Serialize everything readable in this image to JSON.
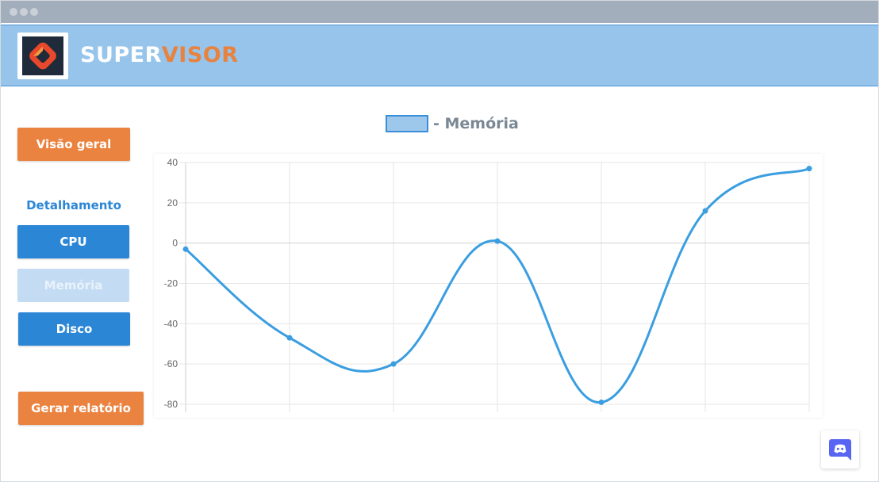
{
  "window": {
    "control_icons": [
      "window-dot-icon",
      "window-dot-icon",
      "window-dot-icon"
    ]
  },
  "header": {
    "logo_icon": "supervisor-logo-icon",
    "brand_part1": "SUPER",
    "brand_part2": "VISOR",
    "brand_color_primary": "#ffffff",
    "brand_color_accent": "#e8823e",
    "background_color": "#96c4ea"
  },
  "sidebar": {
    "overview_label": "Visão geral",
    "section_label": "Detalhamento",
    "items": [
      {
        "label": "CPU",
        "state": "active"
      },
      {
        "label": "Memória",
        "state": "disabled"
      },
      {
        "label": "Disco",
        "state": "active"
      }
    ],
    "report_label": "Gerar relatório"
  },
  "colors": {
    "orange": "#ea833f",
    "blue": "#2b87d6",
    "light_blue": "#c3dcf3",
    "line": "#3a9ee0"
  },
  "chart_data": {
    "type": "line",
    "legend": [
      {
        "name": "- Memória",
        "swatch_color": "#9ec7ec",
        "border_color": "#3a8fd8"
      }
    ],
    "legend_position": "top",
    "categories": [
      "",
      "",
      "",
      "",
      "",
      "",
      ""
    ],
    "series": [
      {
        "name": "- Memória",
        "values": [
          -3,
          -47,
          -60,
          1,
          -79,
          16,
          37
        ]
      }
    ],
    "ylim": [
      -80,
      40
    ],
    "yticks": [
      40,
      20,
      0,
      -20,
      -40,
      -60,
      -80
    ],
    "grid": true,
    "smooth": true
  },
  "floating": {
    "discord_icon": "discord-icon"
  }
}
